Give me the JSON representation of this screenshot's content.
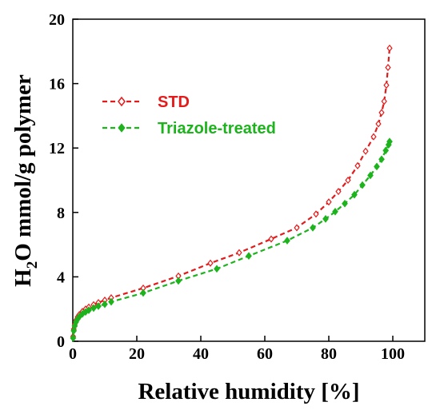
{
  "chart_data": {
    "type": "scatter",
    "xlabel": "Relative humidity [%]",
    "ylabel_main": "H",
    "ylabel_sub": "2",
    "ylabel_rest": "O mmol/g polymer",
    "xlim": [
      0,
      110
    ],
    "ylim": [
      0,
      20
    ],
    "x_ticks": [
      0,
      20,
      40,
      60,
      80,
      100
    ],
    "y_ticks": [
      0,
      4,
      8,
      12,
      16,
      20
    ],
    "x_tick_labels": [
      "0",
      "20",
      "40",
      "60",
      "80",
      "100"
    ],
    "y_tick_labels": [
      "0",
      "4",
      "8",
      "12",
      "16",
      "20"
    ],
    "legend_position": "upper-left",
    "series": [
      {
        "name": "STD",
        "color": "#e31b1b",
        "marker": "open-diamond",
        "line": "dashed",
        "x": [
          0.1,
          0.3,
          0.6,
          1,
          1.5,
          2,
          3,
          4,
          5,
          6.5,
          8,
          10,
          12,
          22,
          33,
          43,
          52,
          62,
          70,
          76,
          80,
          83,
          86,
          89,
          91.5,
          94,
          95.5,
          96.5,
          97.3,
          98,
          98.5,
          99
        ],
        "y": [
          0.3,
          0.75,
          1.05,
          1.3,
          1.5,
          1.65,
          1.85,
          2.0,
          2.12,
          2.27,
          2.4,
          2.55,
          2.7,
          3.3,
          4.05,
          4.85,
          5.5,
          6.35,
          7.05,
          7.9,
          8.65,
          9.3,
          10.0,
          10.9,
          11.8,
          12.7,
          13.5,
          14.2,
          14.9,
          15.9,
          17.0,
          18.2
        ]
      },
      {
        "name": "Triazole-treated",
        "color": "#1db31d",
        "marker": "filled-diamond",
        "line": "dashed",
        "x": [
          0.1,
          0.3,
          0.6,
          1,
          1.5,
          2,
          3,
          4,
          5,
          6.5,
          8,
          10,
          12,
          22,
          33,
          45,
          55,
          67,
          75,
          79,
          82,
          85,
          88,
          90.5,
          93,
          95,
          96.5,
          97.8,
          98.7,
          99
        ],
        "y": [
          0.2,
          0.65,
          0.95,
          1.2,
          1.38,
          1.52,
          1.7,
          1.82,
          1.93,
          2.06,
          2.18,
          2.3,
          2.45,
          3.0,
          3.75,
          4.5,
          5.3,
          6.25,
          7.05,
          7.6,
          8.05,
          8.55,
          9.1,
          9.7,
          10.3,
          10.85,
          11.3,
          11.85,
          12.2,
          12.4
        ]
      }
    ]
  }
}
